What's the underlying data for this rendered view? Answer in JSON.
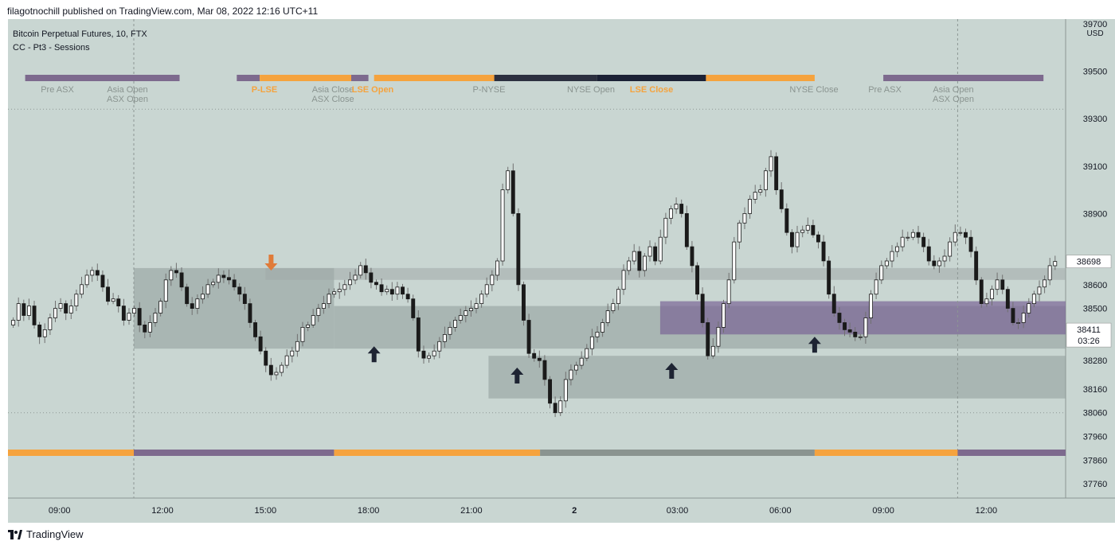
{
  "header": {
    "publish_line": "filagotnochill published on TradingView.com, Mar 08, 2022 12:16 UTC+11"
  },
  "footer": {
    "brand": "TradingView"
  },
  "colors": {
    "background": "#c9d6d2",
    "candle_up_fill": "#ffffff",
    "candle_down_fill": "#1a1a1a",
    "wick": "#707070",
    "orange": "#f5a33e",
    "purple": "#7d6a8e",
    "dark_navy": "#1b2135",
    "grey_zone": "#9aa09f",
    "session_purple_zone": "#7a6595",
    "arrow_dark": "#1e2433",
    "arrow_orange": "#e07b39"
  },
  "chart_data": {
    "type": "candlestick",
    "symbol_title": "Bitcoin Perpetual Futures, 10, FTX",
    "indicator_title": "CC - Pt3 - Sessions",
    "currency": "USD",
    "y_range": [
      37700,
      39720
    ],
    "y_ticks": [
      37760,
      37860,
      37960,
      38060,
      38160,
      38280,
      38500,
      38600,
      38900,
      39100,
      39300,
      39500,
      39700
    ],
    "x_range": [
      "07:30",
      "14:10 (next day)"
    ],
    "x_ticks": [
      "09:00",
      "12:00",
      "15:00",
      "18:00",
      "21:00",
      "2",
      "03:00",
      "06:00",
      "09:00",
      "12:00"
    ],
    "last_price": "38698",
    "current_price": "38411",
    "countdown": "03:26",
    "close_series": [
      38450,
      38520,
      38470,
      38510,
      38430,
      38380,
      38410,
      38460,
      38500,
      38520,
      38480,
      38510,
      38560,
      38600,
      38640,
      38660,
      38640,
      38590,
      38530,
      38540,
      38510,
      38450,
      38480,
      38500,
      38430,
      38400,
      38440,
      38480,
      38530,
      38620,
      38660,
      38650,
      38590,
      38520,
      38500,
      38540,
      38560,
      38600,
      38610,
      38640,
      38630,
      38620,
      38590,
      38560,
      38520,
      38440,
      38380,
      38320,
      38260,
      38220,
      38230,
      38260,
      38300,
      38320,
      38360,
      38420,
      38430,
      38470,
      38500,
      38520,
      38560,
      38570,
      38580,
      38600,
      38620,
      38640,
      38680,
      38650,
      38610,
      38600,
      38570,
      38580,
      38560,
      38590,
      38560,
      38540,
      38460,
      38320,
      38290,
      38300,
      38320,
      38360,
      38390,
      38420,
      38450,
      38470,
      38490,
      38500,
      38520,
      38560,
      38600,
      38640,
      38700,
      39000,
      39080,
      38900,
      38600,
      38450,
      38310,
      38290,
      38280,
      38200,
      38100,
      38060,
      38110,
      38200,
      38240,
      38260,
      38290,
      38330,
      38380,
      38400,
      38440,
      38490,
      38520,
      38580,
      38660,
      38700,
      38740,
      38660,
      38720,
      38760,
      38700,
      38800,
      38880,
      38920,
      38940,
      38900,
      38760,
      38680,
      38560,
      38440,
      38300,
      38340,
      38420,
      38520,
      38620,
      38780,
      38860,
      38900,
      38960,
      38990,
      39000,
      39080,
      39140,
      39000,
      38920,
      38820,
      38760,
      38820,
      38830,
      38850,
      38810,
      38780,
      38700,
      38560,
      38480,
      38440,
      38410,
      38400,
      38380,
      38380,
      38460,
      38560,
      38620,
      38680,
      38700,
      38740,
      38760,
      38800,
      38800,
      38820,
      38800,
      38760,
      38700,
      38680,
      38700,
      38720,
      38780,
      38820,
      38820,
      38800,
      38740,
      38620,
      38520,
      38540,
      38580,
      38620,
      38580,
      38500,
      38440,
      38440,
      38480,
      38520,
      38560,
      38590,
      38620,
      38680,
      38698
    ],
    "zones": [
      {
        "name": "zone-main-grey",
        "from": "11:10",
        "to": "17:00",
        "low": 38330,
        "high": 38670,
        "color": "#8e9c99"
      },
      {
        "name": "zone-mid-grey",
        "from": "17:00",
        "to": "end",
        "low": 38330,
        "high": 38510,
        "color": "#8e9c99"
      },
      {
        "name": "zone-lower-grey",
        "from": "21:30",
        "to": "end",
        "low": 38120,
        "high": 38300,
        "color": "#8e9c99"
      },
      {
        "name": "zone-upper-band",
        "from": "15:00",
        "to": "end",
        "low": 38620,
        "high": 38670,
        "color": "#a1aaa8"
      },
      {
        "name": "zone-purple",
        "from": "02:30",
        "to": "end",
        "low": 38390,
        "high": 38530,
        "color": "#7a6595"
      }
    ],
    "session_bars_top": [
      {
        "from": "08:00",
        "to": "12:30",
        "color": "#7d6a8e"
      },
      {
        "from": "14:10",
        "to": "14:50",
        "color": "#7d6a8e"
      },
      {
        "from": "14:50",
        "to": "17:30",
        "color": "#f5a33e"
      },
      {
        "from": "17:30",
        "to": "18:00",
        "color": "#7d6a8e"
      },
      {
        "from": "18:10",
        "to": "21:40",
        "color": "#f5a33e"
      },
      {
        "from": "21:40",
        "to": "00:40",
        "color": "#2c3040"
      },
      {
        "from": "00:40",
        "to": "03:50",
        "color": "#1b2135"
      },
      {
        "from": "03:50",
        "to": "07:00",
        "color": "#f5a33e"
      },
      {
        "from": "09:00",
        "to": "13:40",
        "color": "#7d6a8e"
      }
    ],
    "session_labels": [
      {
        "text": "Pre ASX",
        "color": "#8a9490"
      },
      {
        "text": "Asia Open",
        "color": "#8a9490"
      },
      {
        "text": "ASX Open",
        "color": "#8a9490"
      },
      {
        "text": "P-LSE",
        "color": "#f5a33e"
      },
      {
        "text": "Asia Close",
        "color": "#8a9490"
      },
      {
        "text": "ASX Close",
        "color": "#8a9490"
      },
      {
        "text": "LSE Open",
        "color": "#f5a33e"
      },
      {
        "text": "P-NYSE",
        "color": "#8a9490"
      },
      {
        "text": "NYSE Open",
        "color": "#8a9490"
      },
      {
        "text": "LSE Close",
        "color": "#f5a33e"
      },
      {
        "text": "NYSE Close",
        "color": "#8a9490"
      },
      {
        "text": "Pre ASX",
        "color": "#8a9490"
      },
      {
        "text": "Asia Open",
        "color": "#8a9490"
      },
      {
        "text": "ASX Open",
        "color": "#8a9490"
      }
    ],
    "session_bar_bottom": [
      {
        "from": "start",
        "to": "11:10",
        "color": "#f5a33e"
      },
      {
        "from": "11:10",
        "to": "17:00",
        "color": "#7d6a8e"
      },
      {
        "from": "17:00",
        "to": "23:00",
        "color": "#f5a33e"
      },
      {
        "from": "23:00",
        "to": "07:00",
        "color": "#8a9490"
      },
      {
        "from": "07:00",
        "to": "11:10",
        "color": "#f5a33e"
      },
      {
        "from": "11:10",
        "to": "end",
        "color": "#7d6a8e"
      }
    ],
    "markers": [
      {
        "type": "arrow-down",
        "color": "#e07b39",
        "at": "15:10",
        "price": 38700
      },
      {
        "type": "arrow-up",
        "color": "#1e2433",
        "at": "18:10",
        "price": 38300
      },
      {
        "type": "arrow-up",
        "color": "#1e2433",
        "at": "22:20",
        "price": 38210
      },
      {
        "type": "arrow-up",
        "color": "#1e2433",
        "at": "02:50",
        "price": 38230
      },
      {
        "type": "arrow-up",
        "color": "#1e2433",
        "at": "07:00",
        "price": 38340
      }
    ]
  }
}
